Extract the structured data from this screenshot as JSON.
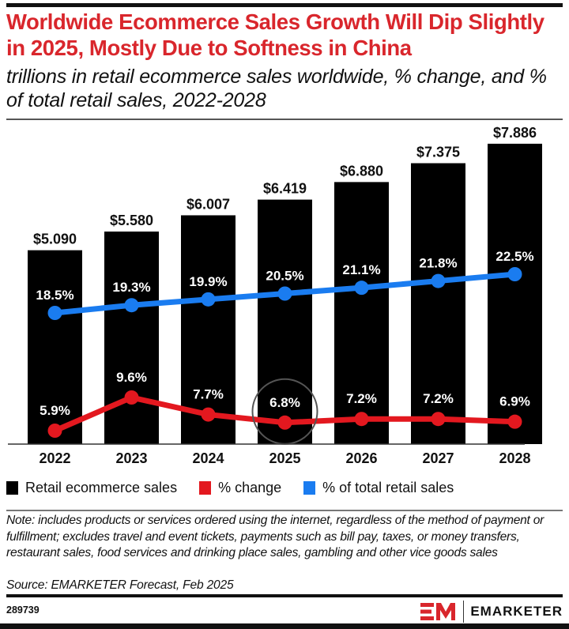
{
  "header": {
    "title": "Worldwide Ecommerce Sales Growth Will Dip Slightly in 2025, Mostly Due to Softness in China",
    "subtitle": "trillions in retail ecommerce sales worldwide, % change, and % of total retail sales, 2022-2028"
  },
  "colors": {
    "title": "#d9262c",
    "bars": "#000000",
    "pct_change": "#e3181f",
    "pct_total": "#1a7cf0",
    "highlight_circle": "#555555"
  },
  "chart_data": {
    "type": "bar",
    "title": "Worldwide Ecommerce Sales Growth Will Dip Slightly in 2025, Mostly Due to Softness in China",
    "subtitle": "trillions in retail ecommerce sales worldwide, % change, and % of total retail sales, 2022-2028",
    "xlabel": "",
    "ylabel": "",
    "grid": false,
    "categories": [
      "2022",
      "2023",
      "2024",
      "2025",
      "2026",
      "2027",
      "2028"
    ],
    "series": [
      {
        "name": "Retail ecommerce sales",
        "type": "bar",
        "unit": "trillions USD",
        "values": [
          5.09,
          5.58,
          6.007,
          6.419,
          6.88,
          7.375,
          7.886
        ],
        "labels": [
          "$5.090",
          "$5.580",
          "$6.007",
          "$6.419",
          "$6.880",
          "$7.375",
          "$7.886"
        ]
      },
      {
        "name": "% change",
        "type": "line",
        "unit": "%",
        "values": [
          5.9,
          9.6,
          7.7,
          6.8,
          7.2,
          7.2,
          6.9
        ],
        "labels": [
          "5.9%",
          "9.6%",
          "7.7%",
          "6.8%",
          "7.2%",
          "7.2%",
          "6.9%"
        ]
      },
      {
        "name": "% of total retail sales",
        "type": "line",
        "unit": "%",
        "values": [
          18.5,
          19.3,
          19.9,
          20.5,
          21.1,
          21.8,
          22.5
        ],
        "labels": [
          "18.5%",
          "19.3%",
          "19.9%",
          "20.5%",
          "21.1%",
          "21.8%",
          "22.5%"
        ]
      }
    ],
    "annotations": [
      {
        "type": "circle-highlight",
        "category": "2025",
        "series": "% change"
      }
    ],
    "legend_position": "bottom-left"
  },
  "legend": {
    "items": [
      {
        "label": "Retail ecommerce sales",
        "color": "#000000"
      },
      {
        "label": "% change",
        "color": "#e3181f"
      },
      {
        "label": "% of total retail sales",
        "color": "#1a7cf0"
      }
    ]
  },
  "footer": {
    "note": "Note: includes products or services ordered using the internet, regardless of the method of payment or fulfillment; excludes travel and event tickets, payments such as bill pay, taxes, or money transfers, restaurant sales, food services and drinking place sales, gambling and other vice goods sales",
    "source": "Source: EMARKETER Forecast, Feb 2025",
    "chart_id": "289739",
    "brand": "EMARKETER"
  }
}
